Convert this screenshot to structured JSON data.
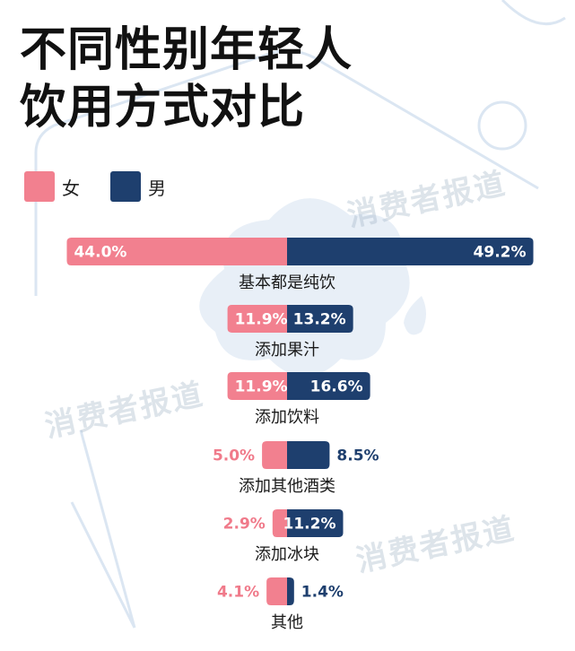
{
  "title": {
    "line1": "不同性别年轻人",
    "line2": "饮用方式对比"
  },
  "legend": [
    {
      "label": "女",
      "color": "#f2808f"
    },
    {
      "label": "男",
      "color": "#1e3f6e"
    }
  ],
  "watermark": "消费者报道",
  "chart_data": {
    "type": "bar",
    "orientation": "horizontal-diverging",
    "categories": [
      "基本都是纯饮",
      "添加果汁",
      "添加饮料",
      "添加其他酒类",
      "添加冰块",
      "其他"
    ],
    "series": [
      {
        "name": "女",
        "values": [
          44.0,
          11.9,
          11.9,
          5.0,
          2.9,
          4.1
        ],
        "labels": [
          "44.0%",
          "11.9%",
          "11.9%",
          "5.0%",
          "2.9%",
          "4.1%"
        ],
        "color": "#f2808f",
        "label_color": "#f07a8a"
      },
      {
        "name": "男",
        "values": [
          49.2,
          13.2,
          16.6,
          8.5,
          11.2,
          1.4
        ],
        "labels": [
          "49.2%",
          "13.2%",
          "16.6%",
          "8.5%",
          "11.2%",
          "1.4%"
        ],
        "color": "#1e3f6e",
        "label_color": "#1e3f6e"
      }
    ],
    "unit": "%",
    "grid": false,
    "legend_position": "top-left"
  }
}
